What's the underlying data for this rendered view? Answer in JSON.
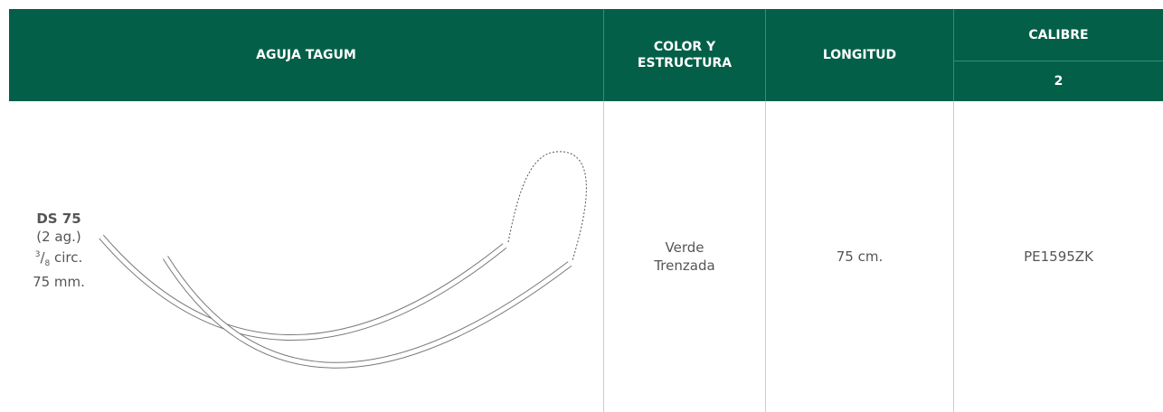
{
  "header": {
    "columns": [
      "AGUJA TAGUM",
      [
        "COLOR Y",
        "ESTRUCTURA"
      ],
      "LONGITUD",
      "CALIBRE"
    ],
    "subheader": "2"
  },
  "row": {
    "needle": {
      "code": "DS 75",
      "count": "(2 ag.)",
      "fraction": {
        "numerator": "3",
        "slash": "/",
        "denominator": "8"
      },
      "curve": "circ.",
      "length": "75 mm."
    },
    "color": [
      "Verde",
      "Trenzada"
    ],
    "longitud": "75 cm.",
    "calibre": "PE1595ZK"
  }
}
